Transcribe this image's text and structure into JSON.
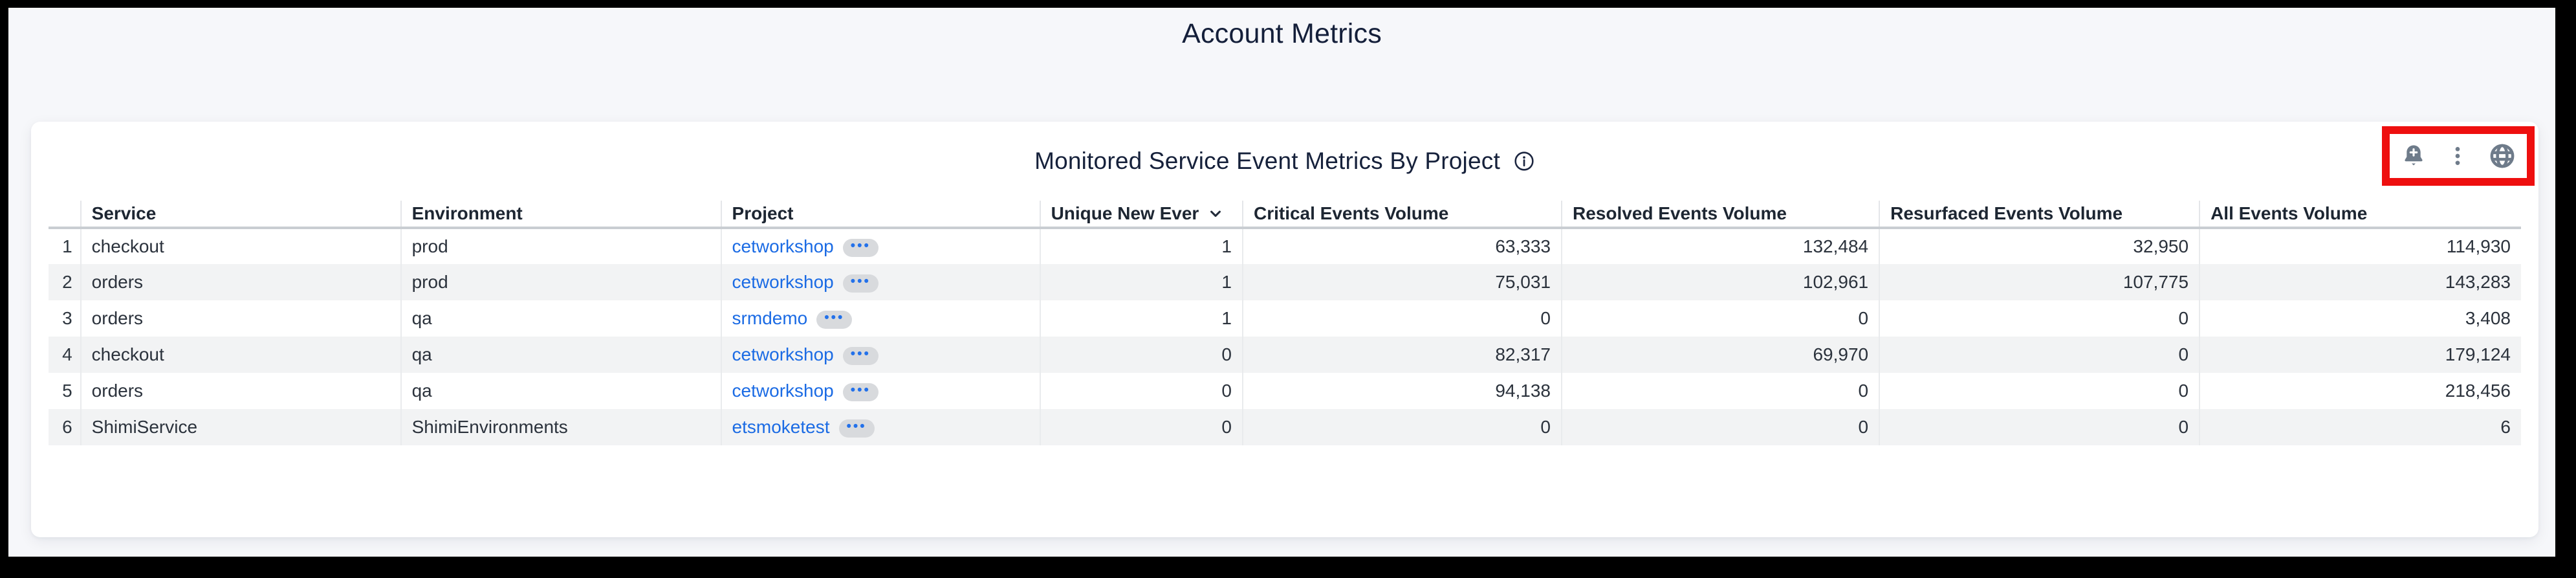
{
  "page": {
    "title": "Account Metrics"
  },
  "panel": {
    "title": "Monitored Service Event Metrics By Project",
    "title_info_icon": "info-circle-icon",
    "toolbar_icons": [
      "add-alert-bell-icon",
      "kebab-menu-icon",
      "globe-icon"
    ],
    "annotation": {
      "shape": "red-highlight-rectangle",
      "color": "#ee0f0f"
    }
  },
  "table": {
    "sorted_column": "Unique New Ever",
    "sort_direction_icon": "chevron-down",
    "columns": [
      {
        "key": "num",
        "label": "",
        "align": "right",
        "sorted": false
      },
      {
        "key": "service",
        "label": "Service",
        "align": "left",
        "sorted": false
      },
      {
        "key": "environment",
        "label": "Environment",
        "align": "left",
        "sorted": false
      },
      {
        "key": "project",
        "label": "Project",
        "align": "left",
        "sorted": false
      },
      {
        "key": "unique",
        "label": "Unique New Ever",
        "align": "right",
        "sorted": true
      },
      {
        "key": "critical",
        "label": "Critical Events Volume",
        "align": "right",
        "sorted": false
      },
      {
        "key": "resolved",
        "label": "Resolved Events Volume",
        "align": "right",
        "sorted": false
      },
      {
        "key": "resurfaced",
        "label": "Resurfaced Events Volume",
        "align": "right",
        "sorted": false
      },
      {
        "key": "all",
        "label": "All Events Volume",
        "align": "right",
        "sorted": false
      }
    ],
    "rows": [
      {
        "num": "1",
        "service": "checkout",
        "environment": "prod",
        "project": "cetworkshop",
        "unique": "1",
        "critical": "63,333",
        "resolved": "132,484",
        "resurfaced": "32,950",
        "all": "114,930"
      },
      {
        "num": "2",
        "service": "orders",
        "environment": "prod",
        "project": "cetworkshop",
        "unique": "1",
        "critical": "75,031",
        "resolved": "102,961",
        "resurfaced": "107,775",
        "all": "143,283"
      },
      {
        "num": "3",
        "service": "orders",
        "environment": "qa",
        "project": "srmdemo",
        "unique": "1",
        "critical": "0",
        "resolved": "0",
        "resurfaced": "0",
        "all": "3,408"
      },
      {
        "num": "4",
        "service": "checkout",
        "environment": "qa",
        "project": "cetworkshop",
        "unique": "0",
        "critical": "82,317",
        "resolved": "69,970",
        "resurfaced": "0",
        "all": "179,124"
      },
      {
        "num": "5",
        "service": "orders",
        "environment": "qa",
        "project": "cetworkshop",
        "unique": "0",
        "critical": "94,138",
        "resolved": "0",
        "resurfaced": "0",
        "all": "218,456"
      },
      {
        "num": "6",
        "service": "ShimiService",
        "environment": "ShimiEnvironments",
        "project": "etsmoketest",
        "unique": "0",
        "critical": "0",
        "resolved": "0",
        "resurfaced": "0",
        "all": "6"
      }
    ],
    "project_badge_glyph": "•••"
  },
  "colors": {
    "page_background": "#f6f7fa",
    "panel_background": "#ffffff",
    "title_text": "#141f3a",
    "header_text": "#1d2632",
    "body_text": "#2b323c",
    "row_stripe": "#f2f3f4",
    "link_blue": "#1b6be4",
    "badge_background": "#d8dadd",
    "toolbar_icon_gray": "#6e7b8a",
    "annotation_red": "#ee0f0f",
    "header_underline": "#c9cdd2",
    "column_separator": "#e9ebed"
  }
}
